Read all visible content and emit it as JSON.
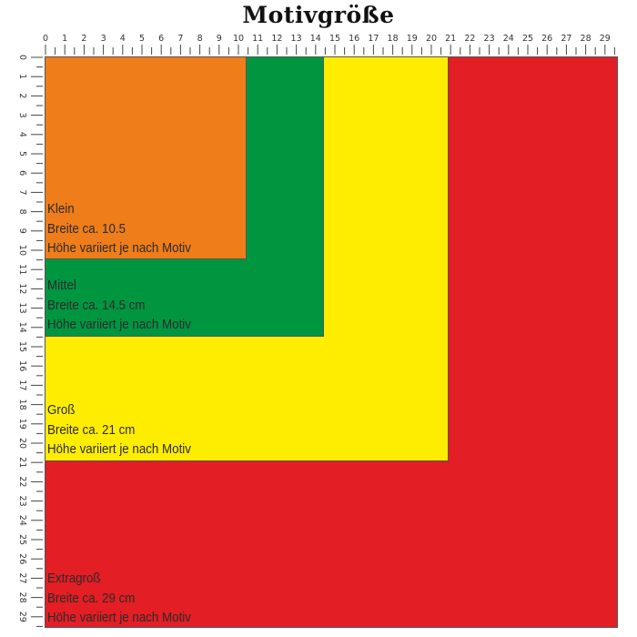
{
  "title": "Motivgröße",
  "ruler": {
    "unit": "cm",
    "ticks": [
      0,
      1,
      2,
      3,
      4,
      5,
      6,
      7,
      8,
      9,
      10,
      11,
      12,
      13,
      14,
      15,
      16,
      17,
      18,
      19,
      20,
      21,
      22,
      23,
      24,
      25,
      26,
      27,
      28,
      29
    ]
  },
  "sizes": [
    {
      "name": "Extragroß",
      "width_line": "Breite ca. 29 cm",
      "height_line": "Höhe variiert je nach Motiv",
      "width_cm": 29.5,
      "color": "#e31e24"
    },
    {
      "name": "Groß",
      "width_line": "Breite ca. 21 cm",
      "height_line": "Höhe variiert je nach Motiv",
      "width_cm": 21,
      "color": "#ffed00"
    },
    {
      "name": "Mittel",
      "width_line": "Breite ca. 14.5 cm",
      "height_line": "Höhe variiert je nach Motiv",
      "width_cm": 14.5,
      "color": "#009640"
    },
    {
      "name": "Klein",
      "width_line": "Breite ca. 10.5",
      "height_line": "Höhe variiert je nach Motiv",
      "width_cm": 10.5,
      "color": "#ef7d1a"
    }
  ]
}
